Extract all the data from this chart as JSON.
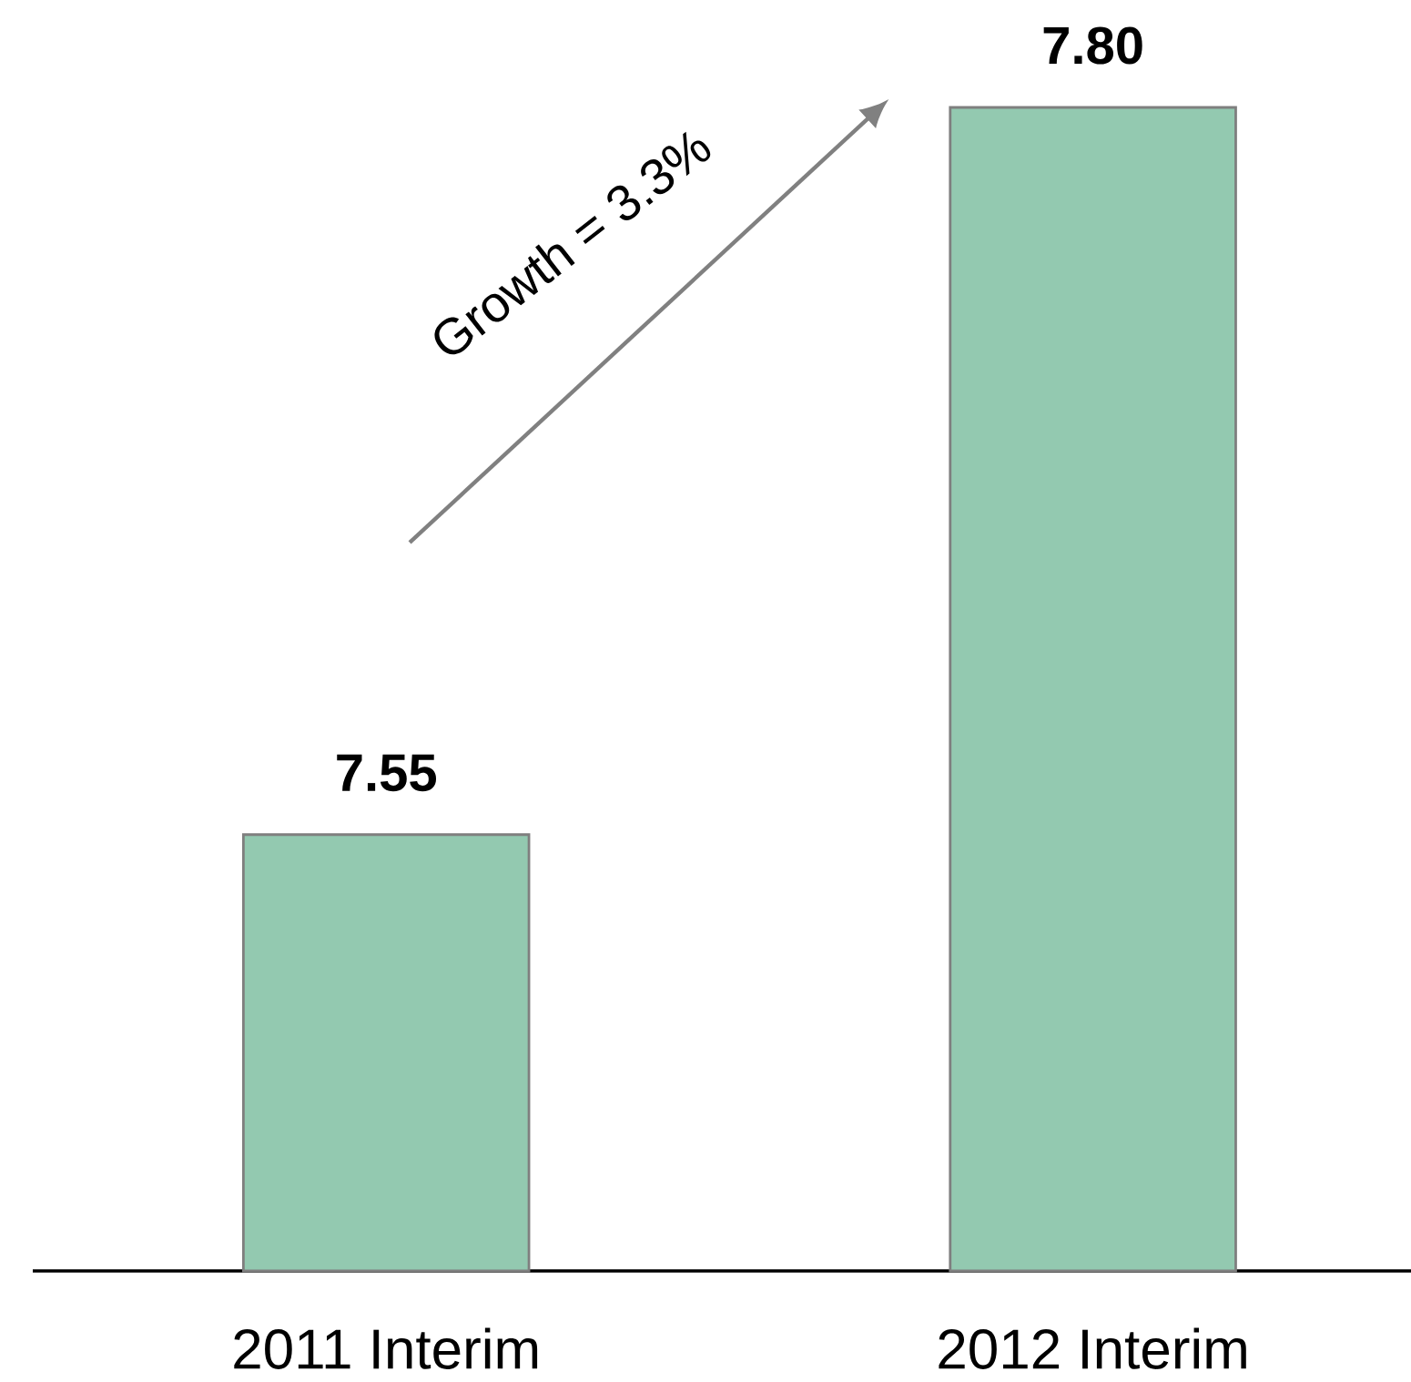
{
  "chart_data": {
    "type": "bar",
    "categories": [
      "2011 Interim",
      "2012 Interim"
    ],
    "values": [
      7.55,
      7.8
    ],
    "value_labels": [
      "7.55",
      "7.80"
    ],
    "color": "#93c9b0",
    "ylim": [
      7.4,
      7.8
    ],
    "annotations": [
      "Growth = 3.3%"
    ]
  }
}
